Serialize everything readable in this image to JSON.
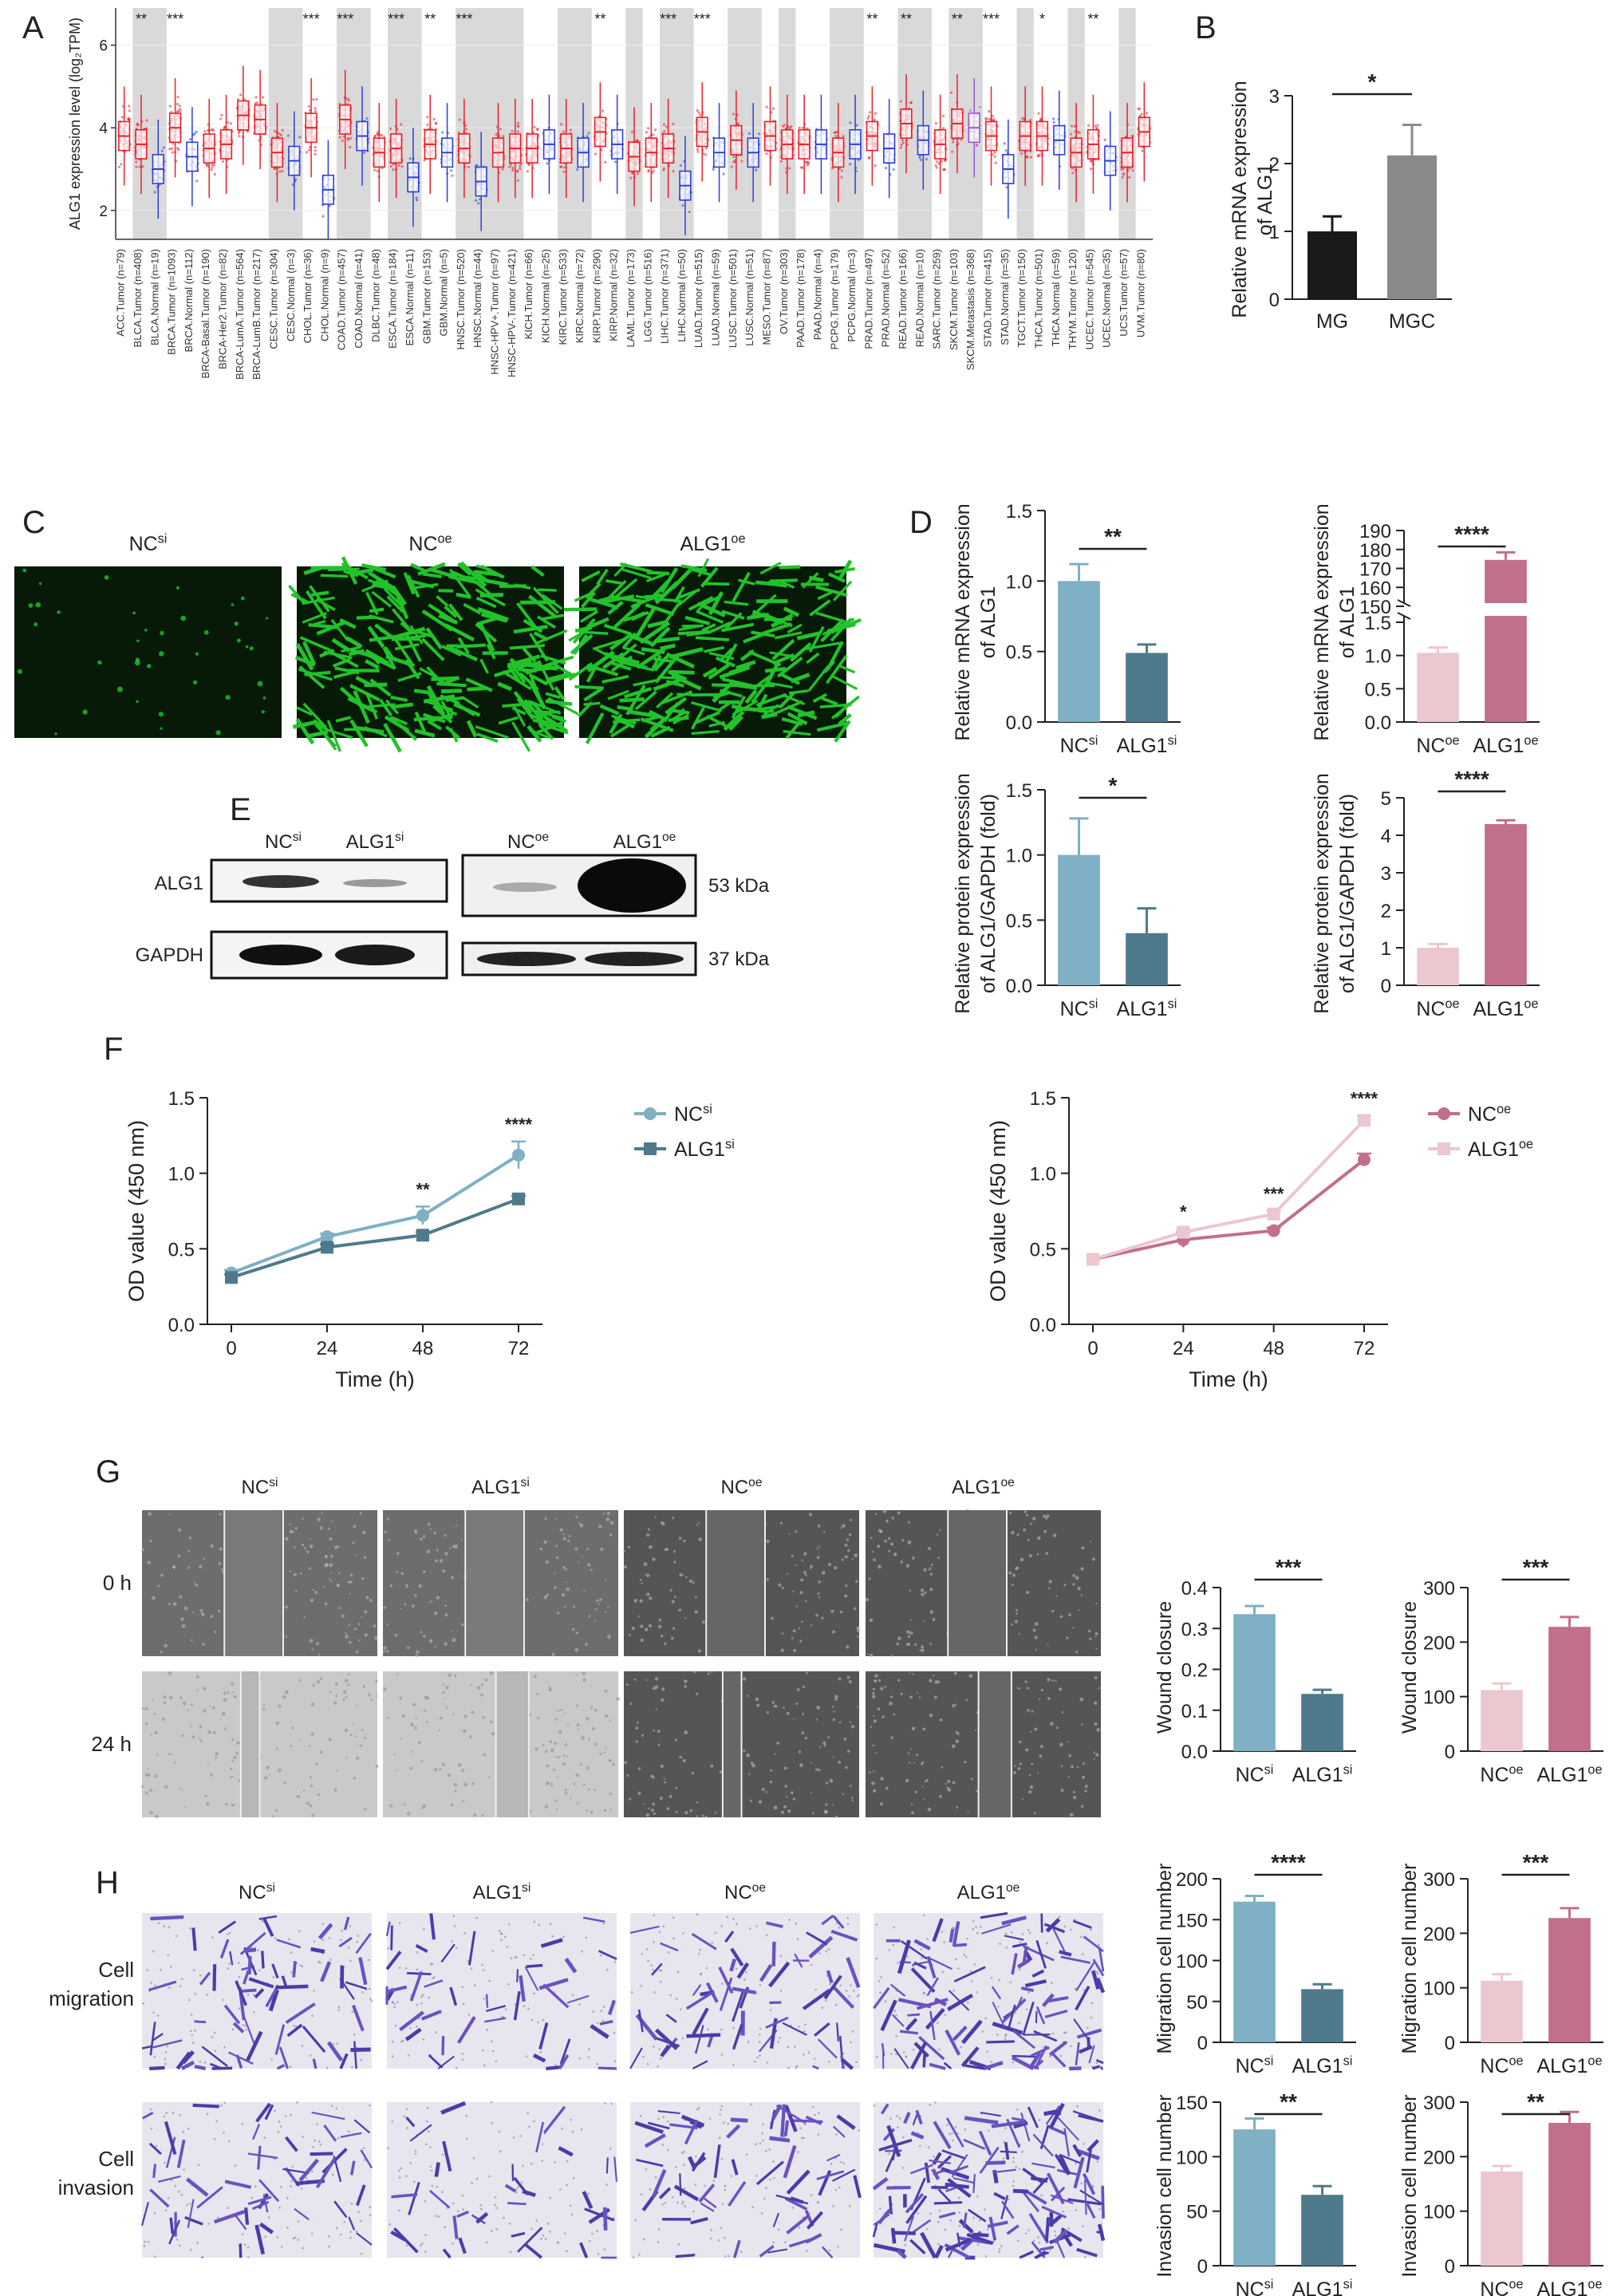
{
  "panel_labels": [
    "A",
    "B",
    "C",
    "D",
    "E",
    "F",
    "G",
    "H"
  ],
  "panel_a": {
    "ylabel": "ALG1 expression level (log₂TPM)",
    "yticks": [
      "2",
      "4",
      "6"
    ],
    "categories": [
      {
        "label": "ACC.Tumor (n=79)",
        "type": "tumor",
        "median": 3.8,
        "sig": ""
      },
      {
        "label": "BLCA.Tumor (n=408)",
        "type": "tumor",
        "median": 3.6,
        "sig": "**"
      },
      {
        "label": "BLCA.Normal (n=19)",
        "type": "normal",
        "median": 3.0,
        "sig": ""
      },
      {
        "label": "BRCA.Tumor (n=1093)",
        "type": "tumor",
        "median": 4.0,
        "sig": "***"
      },
      {
        "label": "BRCA.Normal (n=112)",
        "type": "normal",
        "median": 3.3,
        "sig": ""
      },
      {
        "label": "BRCA-Basal.Tumor (n=190)",
        "type": "tumor",
        "median": 3.5,
        "sig": ""
      },
      {
        "label": "BRCA-Her2.Tumor (n=82)",
        "type": "tumor",
        "median": 3.6,
        "sig": ""
      },
      {
        "label": "BRCA-LumA.Tumor (n=564)",
        "type": "tumor",
        "median": 4.3,
        "sig": ""
      },
      {
        "label": "BRCA-LumB.Tumor (n=217)",
        "type": "tumor",
        "median": 4.2,
        "sig": ""
      },
      {
        "label": "CESC.Tumor (n=304)",
        "type": "tumor",
        "median": 3.4,
        "sig": ""
      },
      {
        "label": "CESC.Normal (n=3)",
        "type": "normal",
        "median": 3.2,
        "sig": ""
      },
      {
        "label": "CHOL.Tumor (n=36)",
        "type": "tumor",
        "median": 4.0,
        "sig": "***"
      },
      {
        "label": "CHOL.Normal (n=9)",
        "type": "normal",
        "median": 2.5,
        "sig": ""
      },
      {
        "label": "COAD.Tumor (n=457)",
        "type": "tumor",
        "median": 4.2,
        "sig": "***"
      },
      {
        "label": "COAD.Normal (n=41)",
        "type": "normal",
        "median": 3.8,
        "sig": ""
      },
      {
        "label": "DLBC.Tumor (n=48)",
        "type": "tumor",
        "median": 3.4,
        "sig": ""
      },
      {
        "label": "ESCA.Tumor (n=184)",
        "type": "tumor",
        "median": 3.5,
        "sig": "***"
      },
      {
        "label": "ESCA.Normal (n=11)",
        "type": "normal",
        "median": 2.8,
        "sig": ""
      },
      {
        "label": "GBM.Tumor (n=153)",
        "type": "tumor",
        "median": 3.6,
        "sig": "**"
      },
      {
        "label": "GBM.Normal (n=5)",
        "type": "normal",
        "median": 3.4,
        "sig": ""
      },
      {
        "label": "HNSC.Tumor (n=520)",
        "type": "tumor",
        "median": 3.5,
        "sig": "***"
      },
      {
        "label": "HNSC.Normal (n=44)",
        "type": "normal",
        "median": 2.7,
        "sig": ""
      },
      {
        "label": "HNSC-HPV+.Tumor (n=97)",
        "type": "tumor",
        "median": 3.4,
        "sig": ""
      },
      {
        "label": "HNSC-HPV-.Tumor (n=421)",
        "type": "tumor",
        "median": 3.5,
        "sig": ""
      },
      {
        "label": "KICH.Tumor (n=66)",
        "type": "tumor",
        "median": 3.5,
        "sig": ""
      },
      {
        "label": "KICH.Normal (n=25)",
        "type": "normal",
        "median": 3.6,
        "sig": ""
      },
      {
        "label": "KIRC.Tumor (n=533)",
        "type": "tumor",
        "median": 3.5,
        "sig": ""
      },
      {
        "label": "KIRC.Normal (n=72)",
        "type": "normal",
        "median": 3.4,
        "sig": ""
      },
      {
        "label": "KIRP.Tumor (n=290)",
        "type": "tumor",
        "median": 3.9,
        "sig": "**"
      },
      {
        "label": "KIRP.Normal (n=32)",
        "type": "normal",
        "median": 3.6,
        "sig": ""
      },
      {
        "label": "LAML.Tumor (n=173)",
        "type": "tumor",
        "median": 3.3,
        "sig": ""
      },
      {
        "label": "LGG.Tumor (n=516)",
        "type": "tumor",
        "median": 3.4,
        "sig": ""
      },
      {
        "label": "LIHC.Tumor (n=371)",
        "type": "tumor",
        "median": 3.5,
        "sig": "***"
      },
      {
        "label": "LIHC.Normal (n=50)",
        "type": "normal",
        "median": 2.6,
        "sig": ""
      },
      {
        "label": "LUAD.Tumor (n=515)",
        "type": "tumor",
        "median": 3.9,
        "sig": "***"
      },
      {
        "label": "LUAD.Normal (n=59)",
        "type": "normal",
        "median": 3.4,
        "sig": ""
      },
      {
        "label": "LUSC.Tumor (n=501)",
        "type": "tumor",
        "median": 3.7,
        "sig": ""
      },
      {
        "label": "LUSC.Normal (n=51)",
        "type": "normal",
        "median": 3.4,
        "sig": ""
      },
      {
        "label": "MESO.Tumor (n=87)",
        "type": "tumor",
        "median": 3.8,
        "sig": ""
      },
      {
        "label": "OV.Tumor (n=303)",
        "type": "tumor",
        "median": 3.6,
        "sig": ""
      },
      {
        "label": "PAAD.Tumor (n=178)",
        "type": "tumor",
        "median": 3.6,
        "sig": ""
      },
      {
        "label": "PAAD.Normal (n=4)",
        "type": "normal",
        "median": 3.6,
        "sig": ""
      },
      {
        "label": "PCPG.Tumor (n=179)",
        "type": "tumor",
        "median": 3.4,
        "sig": ""
      },
      {
        "label": "PCPG.Normal (n=3)",
        "type": "normal",
        "median": 3.6,
        "sig": ""
      },
      {
        "label": "PRAD.Tumor (n=497)",
        "type": "tumor",
        "median": 3.8,
        "sig": "**"
      },
      {
        "label": "PRAD.Normal (n=52)",
        "type": "normal",
        "median": 3.5,
        "sig": ""
      },
      {
        "label": "READ.Tumor (n=166)",
        "type": "tumor",
        "median": 4.1,
        "sig": "**"
      },
      {
        "label": "READ.Normal (n=10)",
        "type": "normal",
        "median": 3.7,
        "sig": ""
      },
      {
        "label": "SARC.Tumor (n=259)",
        "type": "tumor",
        "median": 3.6,
        "sig": ""
      },
      {
        "label": "SKCM.Tumor (n=103)",
        "type": "tumor",
        "median": 4.1,
        "sig": "**"
      },
      {
        "label": "SKCM.Metastasis (n=368)",
        "type": "metastasis",
        "median": 4.0,
        "sig": ""
      },
      {
        "label": "STAD.Tumor (n=415)",
        "type": "tumor",
        "median": 3.8,
        "sig": "***"
      },
      {
        "label": "STAD.Normal (n=35)",
        "type": "normal",
        "median": 3.0,
        "sig": ""
      },
      {
        "label": "TGCT.Tumor (n=150)",
        "type": "tumor",
        "median": 3.8,
        "sig": ""
      },
      {
        "label": "THCA.Tumor (n=501)",
        "type": "tumor",
        "median": 3.8,
        "sig": "*"
      },
      {
        "label": "THCA.Normal (n=59)",
        "type": "normal",
        "median": 3.7,
        "sig": ""
      },
      {
        "label": "THYM.Tumor (n=120)",
        "type": "tumor",
        "median": 3.4,
        "sig": ""
      },
      {
        "label": "UCEC.Tumor (n=545)",
        "type": "tumor",
        "median": 3.6,
        "sig": "**"
      },
      {
        "label": "UCEC.Normal (n=35)",
        "type": "normal",
        "median": 3.2,
        "sig": ""
      },
      {
        "label": "UCS.Tumor (n=57)",
        "type": "tumor",
        "median": 3.4,
        "sig": ""
      },
      {
        "label": "UVM.Tumor (n=80)",
        "type": "tumor",
        "median": 3.9,
        "sig": ""
      }
    ]
  },
  "chart_data": [
    {
      "id": "B",
      "type": "bar",
      "categories": [
        "MG",
        "MGC"
      ],
      "values": [
        1.0,
        2.12
      ],
      "errors": [
        0.22,
        0.45
      ],
      "ylabel": "Relative mRNA expression of ALG1",
      "ylim": [
        0,
        3
      ],
      "yticks": [
        "0",
        "1",
        "2",
        "3"
      ],
      "sig": "*"
    },
    {
      "id": "D1",
      "type": "bar",
      "categories": [
        "NC",
        "ALG1"
      ],
      "sup": "si",
      "values": [
        1.0,
        0.49
      ],
      "errors": [
        0.12,
        0.06
      ],
      "ylabel": "Relative mRNA expression of ALG1",
      "ylim": [
        0,
        1.5
      ],
      "yticks": [
        "0.0",
        "0.5",
        "1.0",
        "1.5"
      ],
      "sig": "**"
    },
    {
      "id": "D2",
      "type": "bar",
      "categories": [
        "NC",
        "ALG1"
      ],
      "sup": "oe",
      "values": [
        1.04,
        174.5
      ],
      "errors": [
        0.08,
        4.0
      ],
      "ylabel": "Relative mRNA expression of ALG1",
      "broken_axis": true,
      "yticks_low": [
        "0.0",
        "0.5",
        "1.0",
        "1.5"
      ],
      "yticks_high": [
        "150",
        "160",
        "170",
        "180",
        "190"
      ],
      "sig": "****"
    },
    {
      "id": "D3",
      "type": "bar",
      "categories": [
        "NC",
        "ALG1"
      ],
      "sup": "si",
      "values": [
        1.0,
        0.4
      ],
      "errors": [
        0.28,
        0.19
      ],
      "ylabel": "Relative protein expression of ALG1/GAPDH (fold)",
      "ylim": [
        0,
        1.5
      ],
      "yticks": [
        "0.0",
        "0.5",
        "1.0",
        "1.5"
      ],
      "sig": "*"
    },
    {
      "id": "D4",
      "type": "bar",
      "categories": [
        "NC",
        "ALG1"
      ],
      "sup": "oe",
      "values": [
        1.0,
        4.3
      ],
      "errors": [
        0.1,
        0.1
      ],
      "ylabel": "Relative protein expression of ALG1/GAPDH (fold)",
      "ylim": [
        0,
        5
      ],
      "yticks": [
        "0",
        "1",
        "2",
        "3",
        "4",
        "5"
      ],
      "sig": "****"
    },
    {
      "id": "F1",
      "type": "line",
      "x": [
        0,
        24,
        48,
        72
      ],
      "xlabel": "Time (h)",
      "ylabel": "OD value (450 nm)",
      "ylim": [
        0,
        1.5
      ],
      "yticks": [
        "0.0",
        "0.5",
        "1.0",
        "1.5"
      ],
      "xticks": [
        "0",
        "24",
        "48",
        "72"
      ],
      "series": [
        {
          "name": "NC",
          "sup": "si",
          "values": [
            0.34,
            0.58,
            0.72,
            1.12
          ],
          "errors": [
            0.02,
            0.02,
            0.06,
            0.09
          ]
        },
        {
          "name": "ALG1",
          "sup": "si",
          "values": [
            0.31,
            0.51,
            0.59,
            0.83
          ],
          "errors": [
            0.02,
            0.02,
            0.02,
            0.02
          ]
        }
      ],
      "annotations": [
        {
          "x": 48,
          "text": "**"
        },
        {
          "x": 72,
          "text": "****"
        }
      ]
    },
    {
      "id": "F2",
      "type": "line",
      "x": [
        0,
        24,
        48,
        72
      ],
      "xlabel": "Time (h)",
      "ylabel": "OD value (450 nm)",
      "ylim": [
        0,
        1.5
      ],
      "yticks": [
        "0.0",
        "0.5",
        "1.0",
        "1.5"
      ],
      "xticks": [
        "0",
        "24",
        "48",
        "72"
      ],
      "series": [
        {
          "name": "NC",
          "sup": "oe",
          "values": [
            0.43,
            0.56,
            0.62,
            1.09
          ],
          "errors": [
            0.02,
            0.05,
            0.02,
            0.04
          ]
        },
        {
          "name": "ALG1",
          "sup": "oe",
          "values": [
            0.43,
            0.61,
            0.73,
            1.35
          ],
          "errors": [
            0.02,
            0.02,
            0.02,
            0.03
          ]
        }
      ],
      "annotations": [
        {
          "x": 24,
          "text": "*"
        },
        {
          "x": 48,
          "text": "***"
        },
        {
          "x": 72,
          "text": "****"
        }
      ]
    },
    {
      "id": "G1",
      "type": "bar",
      "categories": [
        "NC",
        "ALG1"
      ],
      "sup": "si",
      "values": [
        0.335,
        0.14
      ],
      "errors": [
        0.02,
        0.01
      ],
      "ylabel": "Wound closure",
      "ylim": [
        0,
        0.4
      ],
      "yticks": [
        "0.0",
        "0.1",
        "0.2",
        "0.3",
        "0.4"
      ],
      "sig": "***"
    },
    {
      "id": "G2",
      "type": "bar",
      "categories": [
        "NC",
        "ALG1"
      ],
      "sup": "oe",
      "values": [
        112,
        228
      ],
      "errors": [
        12,
        18
      ],
      "ylabel": "Wound closure",
      "ylim": [
        0,
        300
      ],
      "yticks": [
        "0",
        "100",
        "200",
        "300"
      ],
      "sig": "***"
    },
    {
      "id": "H1",
      "type": "bar",
      "categories": [
        "NC",
        "ALG1"
      ],
      "sup": "si",
      "values": [
        172,
        65
      ],
      "errors": [
        7,
        6
      ],
      "ylabel": "Migration cell number",
      "ylim": [
        0,
        200
      ],
      "yticks": [
        "0",
        "50",
        "100",
        "150",
        "200"
      ],
      "sig": "****"
    },
    {
      "id": "H2",
      "type": "bar",
      "categories": [
        "NC",
        "ALG1"
      ],
      "sup": "oe",
      "values": [
        113,
        228
      ],
      "errors": [
        12,
        18
      ],
      "ylabel": "Migration cell number",
      "ylim": [
        0,
        300
      ],
      "yticks": [
        "0",
        "100",
        "200",
        "300"
      ],
      "sig": "***"
    },
    {
      "id": "H3",
      "type": "bar",
      "categories": [
        "NC",
        "ALG1"
      ],
      "sup": "si",
      "values": [
        125,
        65
      ],
      "errors": [
        10,
        8
      ],
      "ylabel": "Invasion cell number",
      "ylim": [
        0,
        150
      ],
      "yticks": [
        "0",
        "50",
        "100",
        "150"
      ],
      "sig": "**"
    },
    {
      "id": "H4",
      "type": "bar",
      "categories": [
        "NC",
        "ALG1"
      ],
      "sup": "oe",
      "values": [
        173,
        262
      ],
      "errors": [
        10,
        20
      ],
      "ylabel": "Invasion cell number",
      "ylim": [
        0,
        300
      ],
      "yticks": [
        "0",
        "100",
        "200",
        "300"
      ],
      "sig": "**"
    }
  ],
  "panel_c": {
    "titles": [
      {
        "base": "NC",
        "sup": "si"
      },
      {
        "base": "NC",
        "sup": "oe"
      },
      {
        "base": "ALG1",
        "sup": "oe"
      }
    ]
  },
  "panel_e": {
    "groups": [
      {
        "base": "NC",
        "sup": "si"
      },
      {
        "base": "ALG1",
        "sup": "si"
      },
      {
        "base": "NC",
        "sup": "oe"
      },
      {
        "base": "ALG1",
        "sup": "oe"
      }
    ],
    "rows": [
      "ALG1",
      "GAPDH"
    ],
    "sizes": [
      "53 kDa",
      "37 kDa"
    ]
  },
  "panel_g": {
    "columns": [
      {
        "base": "NC",
        "sup": "si"
      },
      {
        "base": "ALG1",
        "sup": "si"
      },
      {
        "base": "NC",
        "sup": "oe"
      },
      {
        "base": "ALG1",
        "sup": "oe"
      }
    ],
    "rows": [
      "0 h",
      "24 h"
    ]
  },
  "panel_h": {
    "columns": [
      {
        "base": "NC",
        "sup": "si"
      },
      {
        "base": "ALG1",
        "sup": "si"
      },
      {
        "base": "NC",
        "sup": "oe"
      },
      {
        "base": "ALG1",
        "sup": "oe"
      }
    ],
    "rows": [
      [
        "Cell",
        "migration"
      ],
      [
        "Cell",
        "invasion"
      ]
    ]
  },
  "colors": {
    "si_nc": "#7fb0c3",
    "si_alg1": "#4f7a8b",
    "oe_nc": "#ecc7cf",
    "oe_alg1": "#c26f8a",
    "tumor": "#e8202a",
    "normal": "#2c3fd6",
    "metastasis": "#9a55d8",
    "shade": "#d9d9d9",
    "gfp": "#22c22a"
  }
}
